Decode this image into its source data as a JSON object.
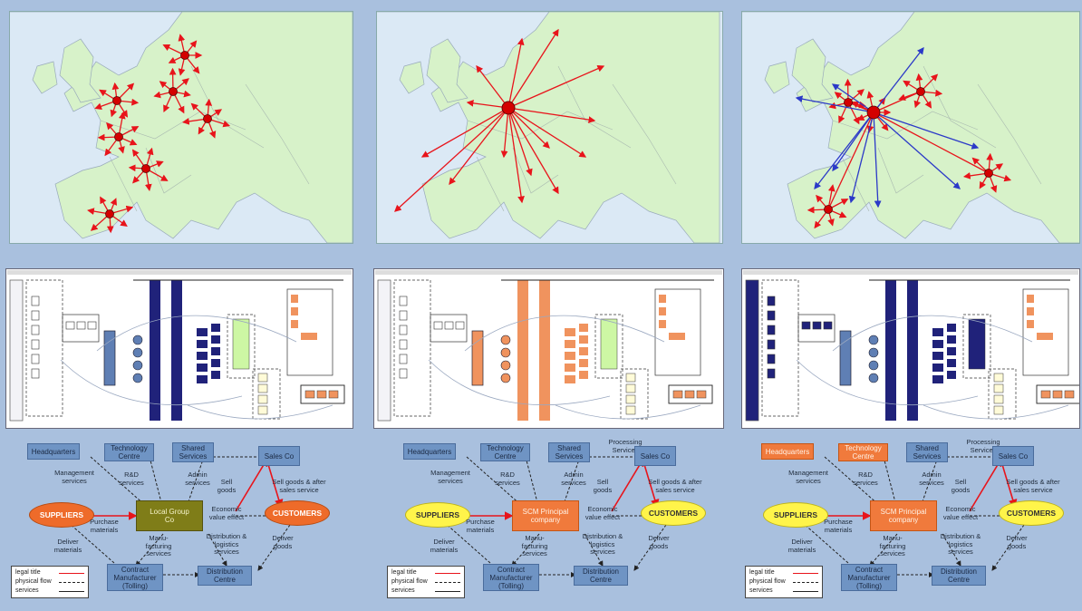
{
  "maps": [
    {
      "id": "map1",
      "hubs": [
        [
          203,
          60
        ],
        [
          128,
          110
        ],
        [
          190,
          100
        ],
        [
          228,
          130
        ],
        [
          130,
          150
        ],
        [
          160,
          185
        ],
        [
          120,
          235
        ]
      ],
      "blue": false
    },
    {
      "id": "map2",
      "hubs": [
        [
          560,
          118
        ]
      ],
      "blue": false
    },
    {
      "id": "map3",
      "hubs": [
        [
          963,
          123
        ],
        [
          1015,
          100
        ],
        [
          935,
          112
        ],
        [
          1090,
          190
        ],
        [
          913,
          230
        ]
      ],
      "blue": true
    }
  ],
  "colors": {
    "sea": "#dbe9f5",
    "land": "#d7f2c9",
    "arrow_red": "#e8141b",
    "arrow_blue": "#2b39c8",
    "hub": "#d40000",
    "navy": "#20227a",
    "salmon": "#f0935e",
    "lime": "#cdf7a4",
    "cream": "#fffbd8"
  },
  "diagrams": [
    {
      "id": "d1",
      "headquarters": "Headquarters",
      "technology": "Technology\nCentre",
      "shared": "Shared\nServices",
      "sales": "Sales Co",
      "center": "Local Group\nCo",
      "suppliers": "SUPPLIERS",
      "customers": "CUSTOMERS",
      "contract": "Contract\nManufacturer\n(Tolling)",
      "distribution": "Distribution Centre",
      "l_management": "Management\nservices",
      "l_rd": "R&D\nservices",
      "l_admin": "Admin\nservices",
      "l_sell": "Sell\ngoods",
      "l_sellafter": "Sell goods & after\nsales service",
      "l_purchase": "Purchase\nmaterials",
      "l_economic": "Economic\nvalue effect",
      "l_deliver_mat": "Deliver\nmaterials",
      "l_manu": "Manu-\nfacturing\nservices",
      "l_distr": "Distribution &\nlogistics\nservices",
      "l_deliver_goods": "Deliver\ngoods",
      "legend": [
        "legal title",
        "physical flow",
        "services"
      ],
      "center_style": "olive",
      "ellipse_style": "orange",
      "hq_style": "blue"
    },
    {
      "id": "d2",
      "headquarters": "Headquarters",
      "technology": "Technology\nCentre",
      "shared": "Shared\nServices",
      "processing": "Processing\nServices",
      "sales": "Sales Co",
      "center": "SCM Principal\ncompany",
      "suppliers": "SUPPLIERS",
      "customers": "CUSTOMERS",
      "contract": "Contract\nManufacturer\n(Tolling)",
      "distribution": "Distribution\nCentre",
      "l_management": "Management\nservices",
      "l_rd": "R&D\nservices",
      "l_admin": "Admin\nservices",
      "l_sell": "Sell\ngoods",
      "l_sellafter": "Sell goods & after\nsales service",
      "l_purchase": "Purchase\nmaterials",
      "l_economic": "Economic\nvalue effect",
      "l_deliver_mat": "Deliver\nmaterials",
      "l_manu": "Manu-\nfacturing\nservices",
      "l_distr": "Distribution &\nlogistics\nservices",
      "l_deliver_goods": "Deliver\ngoods",
      "legend": [
        "legal title",
        "physical flow",
        "services"
      ],
      "center_style": "orange",
      "ellipse_style": "yellow",
      "hq_style": "blue"
    },
    {
      "id": "d3",
      "headquarters": "Headquarters",
      "technology": "Technology\nCentre",
      "shared": "Shared\nServices",
      "processing": "Processing\nServices",
      "sales": "Sales Co",
      "center": "SCM Principal\ncompany",
      "suppliers": "SUPPLIERS",
      "customers": "CUSTOMERS",
      "contract": "Contract\nManufacturer\n(Tolling)",
      "distribution": "Distribution\nCentre",
      "l_management": "Management\nservices",
      "l_rd": "R&D\nservices",
      "l_admin": "Admin\nservices",
      "l_sell": "Sell\ngoods",
      "l_sellafter": "Sell goods & after\nsales service",
      "l_purchase": "Purchase\nmaterials",
      "l_economic": "Economic\nvalue effect",
      "l_deliver_mat": "Deliver\nmaterials",
      "l_manu": "Manu-\nfacturing\nservices",
      "l_distr": "Distribution &\nlogistics\nservices",
      "l_deliver_goods": "Deliver\ngoods",
      "legend": [
        "legal title",
        "physical flow",
        "services"
      ],
      "center_style": "orange",
      "ellipse_style": "yellow",
      "hq_style": "orange"
    }
  ]
}
